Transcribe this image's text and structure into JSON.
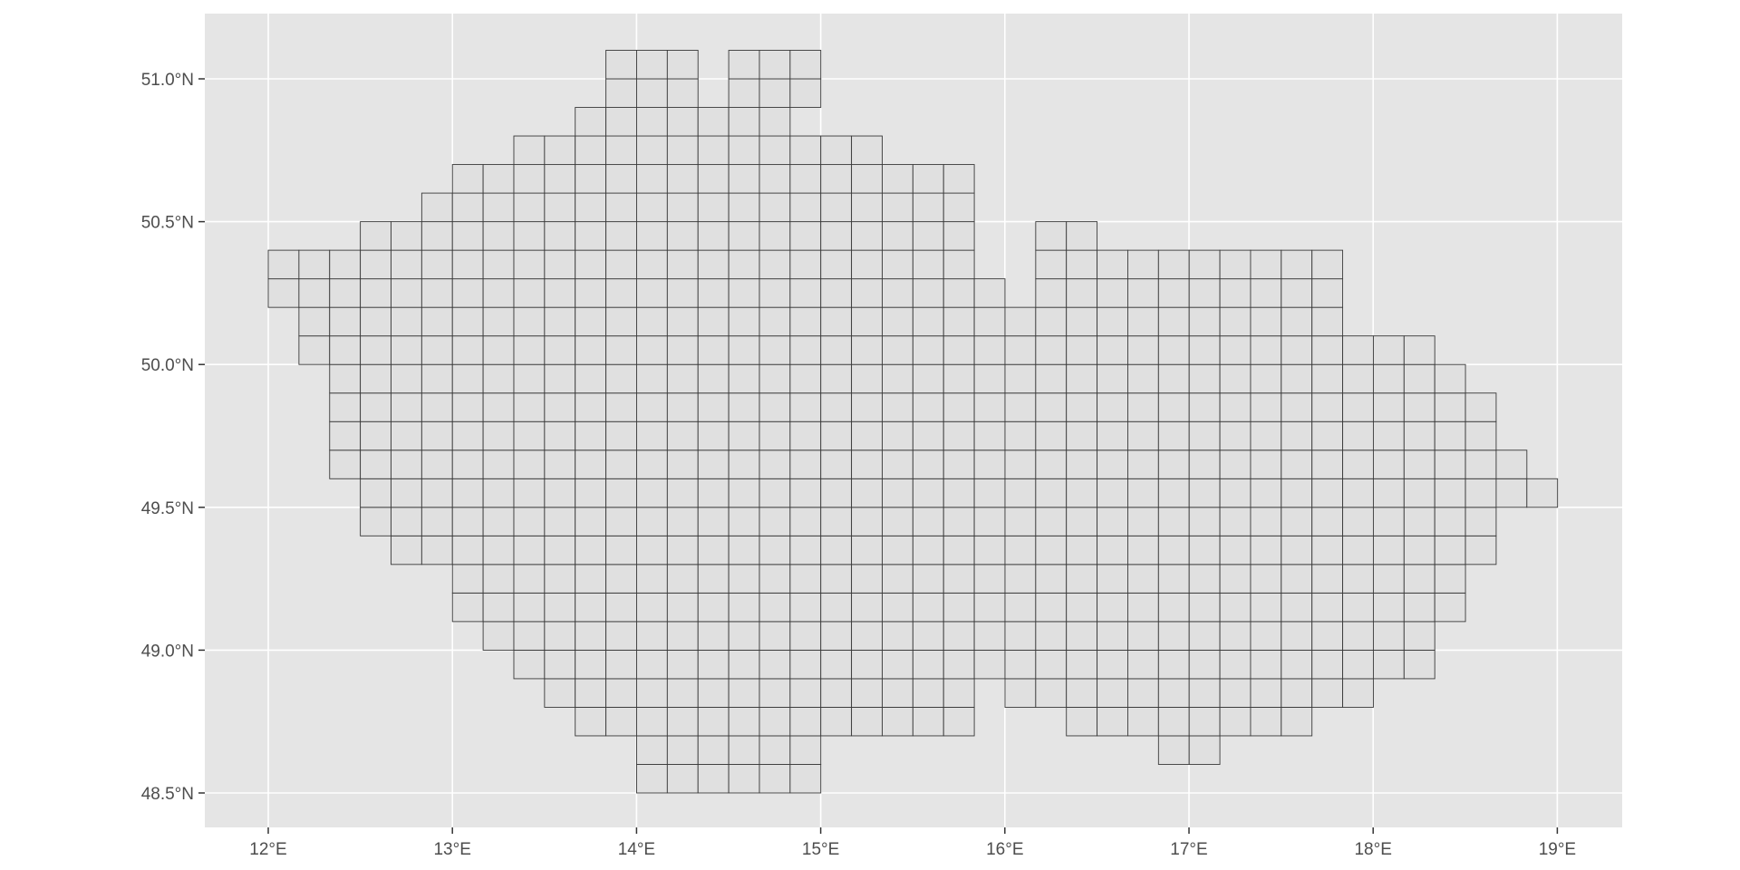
{
  "chart_data": {
    "type": "map-grid",
    "title": "",
    "xlabel": "",
    "ylabel": "",
    "xlim": [
      11.65,
      19.35
    ],
    "ylim": [
      48.39,
      51.23
    ],
    "x_ticks": [
      {
        "value": 12,
        "label": "12°E"
      },
      {
        "value": 13,
        "label": "13°E"
      },
      {
        "value": 14,
        "label": "14°E"
      },
      {
        "value": 15,
        "label": "15°E"
      },
      {
        "value": 16,
        "label": "16°E"
      },
      {
        "value": 17,
        "label": "17°E"
      },
      {
        "value": 18,
        "label": "18°E"
      },
      {
        "value": 19,
        "label": "19°E"
      }
    ],
    "y_ticks": [
      {
        "value": 48.5,
        "label": "48.5°N"
      },
      {
        "value": 49.0,
        "label": "49.0°N"
      },
      {
        "value": 49.5,
        "label": "49.5°N"
      },
      {
        "value": 50.0,
        "label": "50.0°N"
      },
      {
        "value": 50.5,
        "label": "50.5°N"
      },
      {
        "value": 51.0,
        "label": "51.0°N"
      }
    ],
    "grid": true,
    "background_color": "#e5e5e5",
    "grid_color": "#ffffff",
    "cell_fill": "#e0e0e0",
    "cell_stroke": "#3a3a3a",
    "cell_size_deg": {
      "lon": 0.1667,
      "lat": 0.1
    },
    "grid_origin": {
      "lon": 12.0,
      "lat": 48.5
    },
    "rows": [
      {
        "lat_bottom": 48.5,
        "spans": [
          [
            12,
            17
          ]
        ]
      },
      {
        "lat_bottom": 48.6,
        "spans": [
          [
            12,
            17
          ],
          [
            29,
            30
          ]
        ]
      },
      {
        "lat_bottom": 48.7,
        "spans": [
          [
            10,
            22
          ],
          [
            26,
            33
          ]
        ]
      },
      {
        "lat_bottom": 48.8,
        "spans": [
          [
            9,
            22
          ],
          [
            24,
            35
          ]
        ]
      },
      {
        "lat_bottom": 48.9,
        "spans": [
          [
            8,
            37
          ]
        ]
      },
      {
        "lat_bottom": 49.0,
        "spans": [
          [
            7,
            37
          ]
        ]
      },
      {
        "lat_bottom": 49.1,
        "spans": [
          [
            6,
            38
          ]
        ]
      },
      {
        "lat_bottom": 49.2,
        "spans": [
          [
            6,
            38
          ]
        ]
      },
      {
        "lat_bottom": 49.3,
        "spans": [
          [
            4,
            39
          ]
        ]
      },
      {
        "lat_bottom": 49.4,
        "spans": [
          [
            3,
            39
          ]
        ]
      },
      {
        "lat_bottom": 49.5,
        "spans": [
          [
            3,
            41
          ]
        ]
      },
      {
        "lat_bottom": 49.6,
        "spans": [
          [
            2,
            40
          ]
        ]
      },
      {
        "lat_bottom": 49.7,
        "spans": [
          [
            2,
            39
          ]
        ]
      },
      {
        "lat_bottom": 49.8,
        "spans": [
          [
            2,
            39
          ]
        ]
      },
      {
        "lat_bottom": 49.9,
        "spans": [
          [
            2,
            38
          ]
        ]
      },
      {
        "lat_bottom": 50.0,
        "spans": [
          [
            1,
            37
          ]
        ]
      },
      {
        "lat_bottom": 50.1,
        "spans": [
          [
            1,
            34
          ]
        ]
      },
      {
        "lat_bottom": 50.2,
        "spans": [
          [
            0,
            23
          ],
          [
            25,
            34
          ]
        ]
      },
      {
        "lat_bottom": 50.3,
        "spans": [
          [
            0,
            22
          ],
          [
            25,
            34
          ]
        ]
      },
      {
        "lat_bottom": 50.4,
        "spans": [
          [
            3,
            22
          ],
          [
            25,
            26
          ]
        ]
      },
      {
        "lat_bottom": 50.5,
        "spans": [
          [
            5,
            22
          ]
        ]
      },
      {
        "lat_bottom": 50.6,
        "spans": [
          [
            6,
            22
          ]
        ]
      },
      {
        "lat_bottom": 50.7,
        "spans": [
          [
            8,
            19
          ]
        ]
      },
      {
        "lat_bottom": 50.8,
        "spans": [
          [
            10,
            16
          ]
        ]
      },
      {
        "lat_bottom": 50.9,
        "spans": [
          [
            11,
            13
          ],
          [
            15,
            17
          ]
        ]
      },
      {
        "lat_bottom": 51.0,
        "spans": [
          [
            11,
            13
          ],
          [
            15,
            17
          ]
        ]
      }
    ]
  }
}
